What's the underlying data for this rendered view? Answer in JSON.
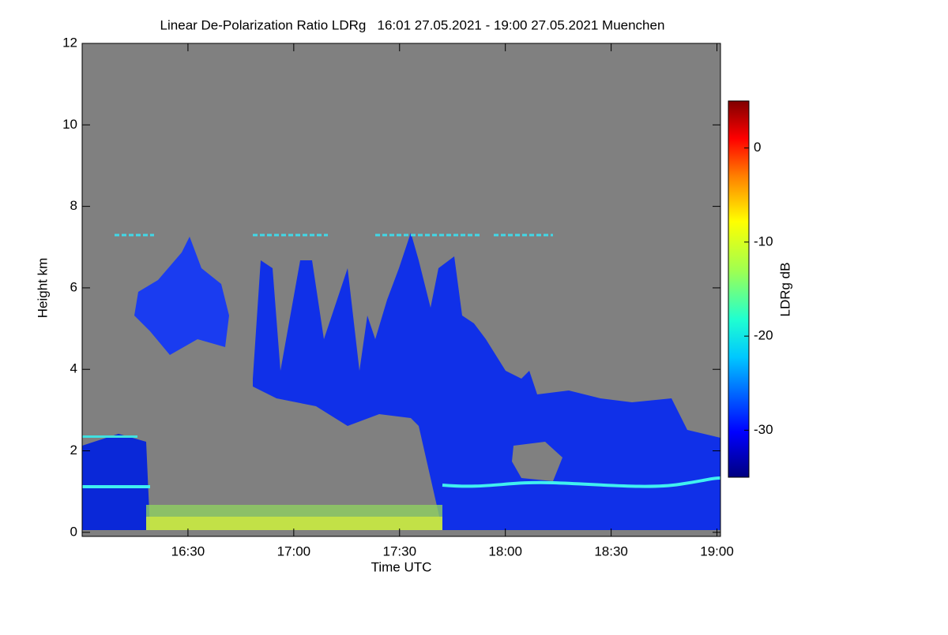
{
  "chart_data": {
    "type": "heatmap",
    "title": "Linear De-Polarization Ratio LDRg   16:01 27.05.2021 - 19:00 27.05.2021 Muenchen",
    "xlabel": "Time UTC",
    "ylabel": "Height km",
    "xlim": [
      960,
      1141
    ],
    "xticks": [
      {
        "value": 990,
        "label": "16:30"
      },
      {
        "value": 1020,
        "label": "17:00"
      },
      {
        "value": 1050,
        "label": "17:30"
      },
      {
        "value": 1080,
        "label": "18:00"
      },
      {
        "value": 1110,
        "label": "18:30"
      },
      {
        "value": 1140,
        "label": "19:00"
      }
    ],
    "ylim": [
      -0.1,
      12
    ],
    "yticks": [
      0,
      2,
      4,
      6,
      8,
      10,
      12
    ],
    "colorbar": {
      "label": "LDRg dB",
      "lim": [
        -35,
        5
      ],
      "ticks": [
        -30,
        -20,
        -10,
        0
      ]
    }
  }
}
